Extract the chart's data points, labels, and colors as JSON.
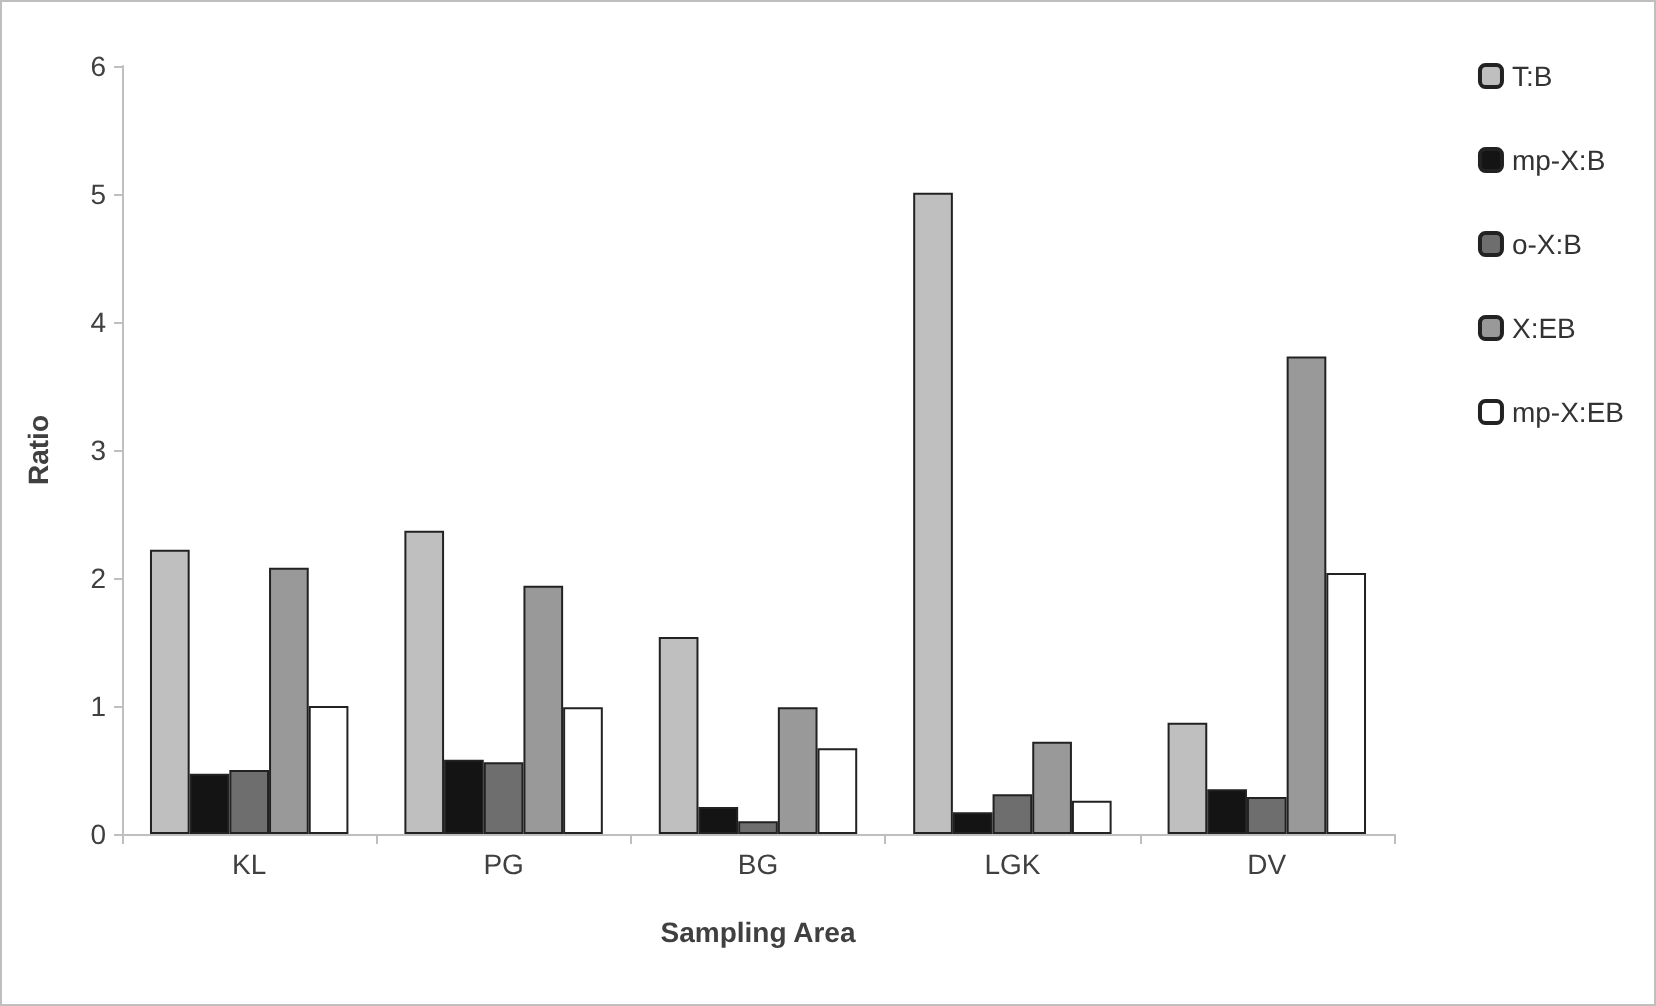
{
  "chart_data": {
    "type": "bar",
    "xlabel": "Sampling Area",
    "ylabel": "Ratio",
    "categories": [
      "KL",
      "PG",
      "BG",
      "LGK",
      "DV"
    ],
    "series": [
      {
        "name": "T:B",
        "color": "#bfbfbf",
        "values": [
          2.22,
          2.37,
          1.54,
          5.01,
          0.87
        ]
      },
      {
        "name": "mp-X:B",
        "color": "#141414",
        "values": [
          0.47,
          0.58,
          0.21,
          0.17,
          0.35
        ]
      },
      {
        "name": "o-X:B",
        "color": "#6e6e6e",
        "values": [
          0.5,
          0.56,
          0.1,
          0.31,
          0.29
        ]
      },
      {
        "name": "X:EB",
        "color": "#999999",
        "values": [
          2.08,
          1.94,
          0.99,
          0.72,
          3.73
        ]
      },
      {
        "name": "mp-X:EB",
        "color": "#ffffff",
        "values": [
          1.0,
          0.99,
          0.67,
          0.26,
          2.04
        ]
      }
    ],
    "ylim": [
      0,
      6
    ],
    "yticks": [
      0,
      1,
      2,
      3,
      4,
      5,
      6
    ],
    "grid": false,
    "legend": "right"
  }
}
